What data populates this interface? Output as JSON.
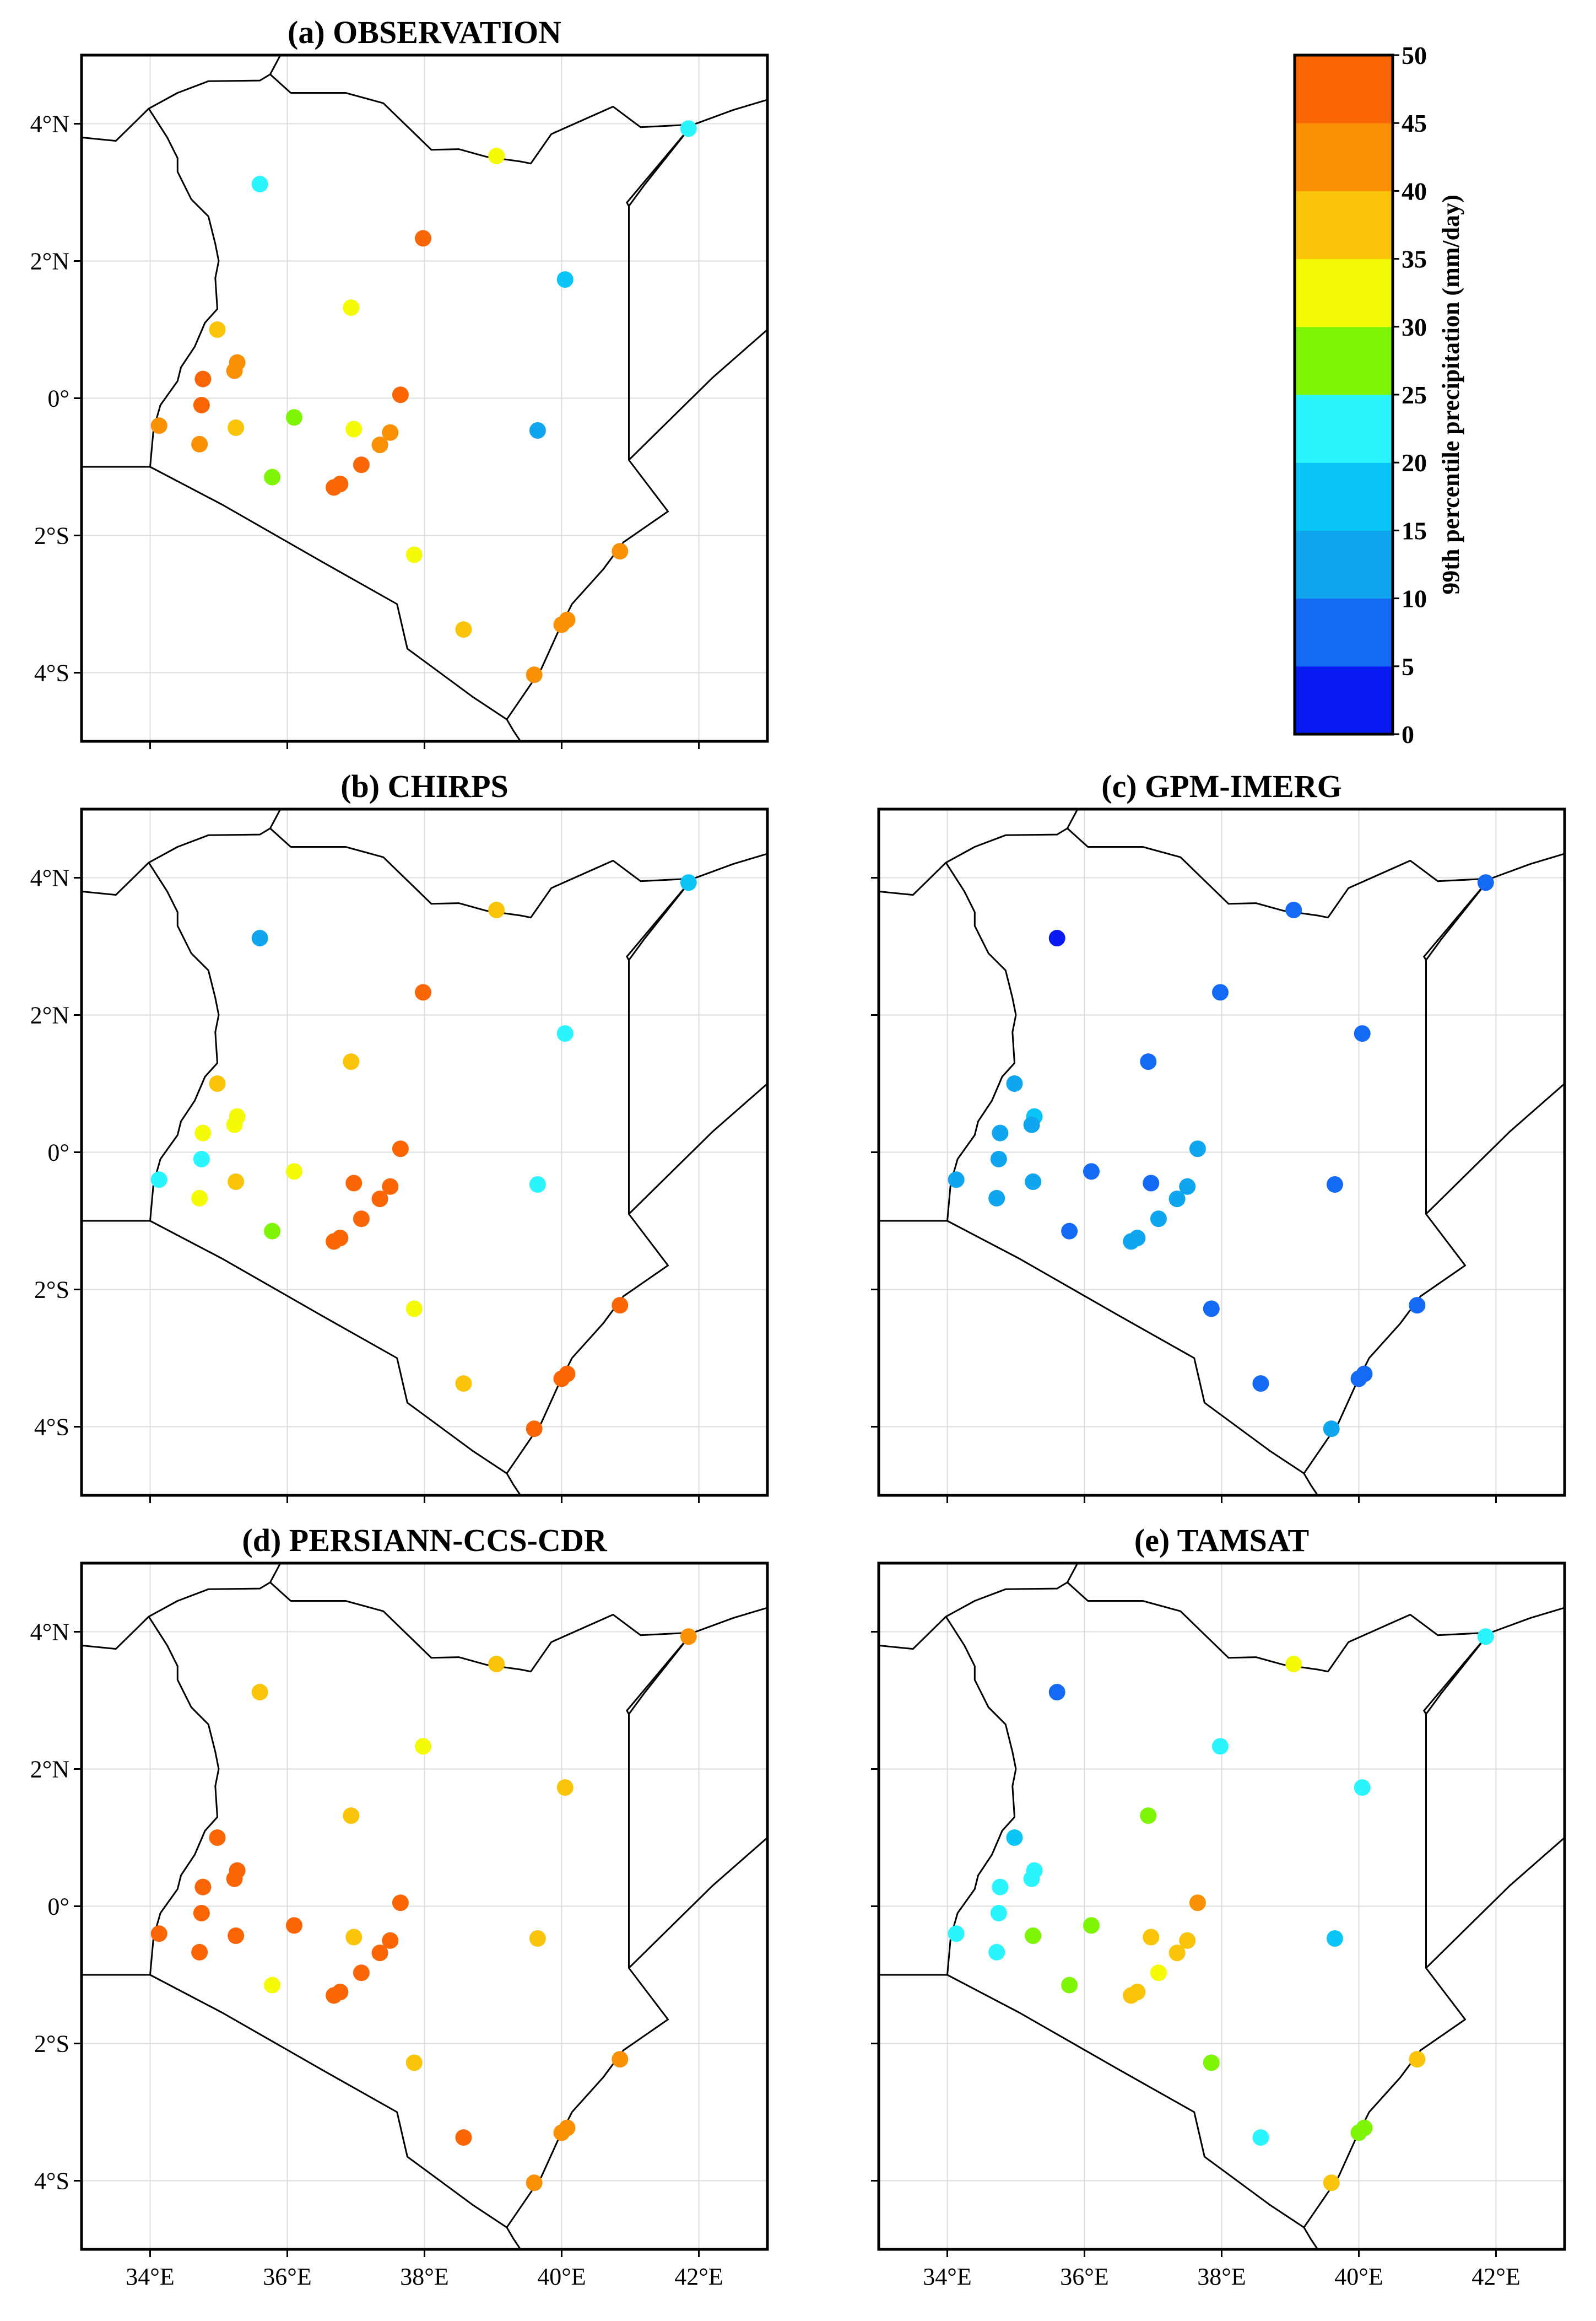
{
  "chart_data": {
    "type": "scatter",
    "map_region": "Kenya",
    "xlim": [
      33,
      43
    ],
    "ylim": [
      -5,
      5
    ],
    "x_ticks": [
      34,
      36,
      38,
      40,
      42
    ],
    "x_tick_labels": [
      "34°E",
      "36°E",
      "38°E",
      "40°E",
      "42°E"
    ],
    "y_ticks": [
      4,
      2,
      0,
      -2,
      -4
    ],
    "y_tick_labels": [
      "4°N",
      "2°N",
      "0°",
      "2°S",
      "4°S"
    ],
    "grid": true,
    "stations": [
      {
        "lon": 41.85,
        "lat": 3.93
      },
      {
        "lon": 39.05,
        "lat": 3.53
      },
      {
        "lon": 35.6,
        "lat": 3.12
      },
      {
        "lon": 37.98,
        "lat": 2.33
      },
      {
        "lon": 40.05,
        "lat": 1.73
      },
      {
        "lon": 36.93,
        "lat": 1.32
      },
      {
        "lon": 34.98,
        "lat": 1.0
      },
      {
        "lon": 35.27,
        "lat": 0.52
      },
      {
        "lon": 35.23,
        "lat": 0.4
      },
      {
        "lon": 34.77,
        "lat": 0.28
      },
      {
        "lon": 37.65,
        "lat": 0.05
      },
      {
        "lon": 34.75,
        "lat": -0.1
      },
      {
        "lon": 36.1,
        "lat": -0.28
      },
      {
        "lon": 34.13,
        "lat": -0.4
      },
      {
        "lon": 35.25,
        "lat": -0.43
      },
      {
        "lon": 36.97,
        "lat": -0.45
      },
      {
        "lon": 39.65,
        "lat": -0.47
      },
      {
        "lon": 37.5,
        "lat": -0.5
      },
      {
        "lon": 34.72,
        "lat": -0.67
      },
      {
        "lon": 37.35,
        "lat": -0.68
      },
      {
        "lon": 37.08,
        "lat": -0.97
      },
      {
        "lon": 35.78,
        "lat": -1.15
      },
      {
        "lon": 36.77,
        "lat": -1.25
      },
      {
        "lon": 36.68,
        "lat": -1.3
      },
      {
        "lon": 37.85,
        "lat": -2.28
      },
      {
        "lon": 40.85,
        "lat": -2.23
      },
      {
        "lon": 40.08,
        "lat": -3.23
      },
      {
        "lon": 40.0,
        "lat": -3.3
      },
      {
        "lon": 38.57,
        "lat": -3.37
      },
      {
        "lon": 39.6,
        "lat": -4.03
      }
    ],
    "panels": [
      {
        "title": "(a) OBSERVATION",
        "values": [
          22,
          32,
          22,
          47,
          17,
          32,
          37,
          42,
          40,
          45,
          45,
          45,
          27,
          42,
          37,
          32,
          12,
          43,
          40,
          42,
          47,
          27,
          45,
          45,
          32,
          43,
          42,
          42,
          37,
          41
        ]
      },
      {
        "title": "(b) CHIRPS",
        "values": [
          17,
          37,
          14,
          47,
          22,
          37,
          37,
          32,
          32,
          32,
          47,
          22,
          32,
          22,
          37,
          47,
          22,
          47,
          32,
          47,
          47,
          27,
          47,
          47,
          32,
          48,
          47,
          47,
          37,
          47
        ]
      },
      {
        "title": "(c) GPM-IMERG",
        "values": [
          7,
          7,
          2,
          7,
          7,
          7,
          12,
          17,
          13,
          12,
          12,
          12,
          7,
          12,
          12,
          7,
          7,
          12,
          12,
          12,
          12,
          7,
          12,
          12,
          7,
          7,
          7,
          7,
          7,
          12
        ]
      },
      {
        "title": "(d) PERSIANN-CCS-CDR",
        "values": [
          42,
          37,
          37,
          32,
          37,
          37,
          47,
          47,
          45,
          45,
          45,
          45,
          45,
          45,
          45,
          37,
          37,
          45,
          45,
          45,
          45,
          32,
          45,
          45,
          37,
          42,
          42,
          42,
          45,
          41
        ]
      },
      {
        "title": "(e) TAMSAT",
        "values": [
          22,
          32,
          7,
          22,
          22,
          27,
          17,
          22,
          22,
          22,
          42,
          22,
          27,
          22,
          27,
          37,
          17,
          37,
          22,
          37,
          32,
          27,
          37,
          37,
          27,
          37,
          27,
          27,
          22,
          37
        ]
      }
    ],
    "colorbar": {
      "label": "99th percentile precipitation (mm/day)",
      "ticks": [
        "0",
        "5",
        "10",
        "15",
        "20",
        "25",
        "30",
        "35",
        "40",
        "45",
        "50"
      ],
      "colors": [
        "#0a1af2",
        "#1469f5",
        "#0fa5ef",
        "#0ac5f5",
        "#2af5ff",
        "#7ef505",
        "#f5fa05",
        "#fac40a",
        "#fa9105",
        "#fa6605",
        "#fa3205"
      ]
    }
  }
}
